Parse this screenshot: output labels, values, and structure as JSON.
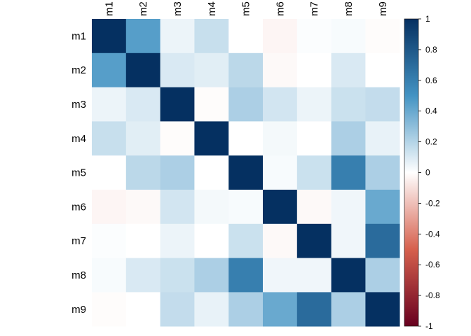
{
  "chart_data": {
    "type": "heatmap",
    "variables": [
      "m1",
      "m2",
      "m3",
      "m4",
      "m5",
      "m6",
      "m7",
      "m8",
      "m9"
    ],
    "matrix": [
      [
        1.0,
        0.45,
        0.05,
        0.15,
        0.0,
        -0.03,
        0.01,
        0.02,
        -0.01
      ],
      [
        0.45,
        1.0,
        0.1,
        0.08,
        0.18,
        -0.02,
        0.0,
        0.1,
        0.0
      ],
      [
        0.05,
        0.1,
        1.0,
        -0.01,
        0.22,
        0.12,
        0.05,
        0.14,
        0.16
      ],
      [
        0.15,
        0.08,
        -0.01,
        1.0,
        0.0,
        0.03,
        0.0,
        0.22,
        0.06
      ],
      [
        0.0,
        0.18,
        0.22,
        0.0,
        1.0,
        0.02,
        0.14,
        0.6,
        0.22
      ],
      [
        -0.03,
        -0.02,
        0.12,
        0.03,
        0.02,
        1.0,
        -0.02,
        0.04,
        0.4
      ],
      [
        0.01,
        0.0,
        0.05,
        0.0,
        0.14,
        -0.02,
        1.0,
        0.04,
        0.7
      ],
      [
        0.02,
        0.1,
        0.14,
        0.22,
        0.6,
        0.04,
        0.04,
        1.0,
        0.22
      ],
      [
        -0.01,
        0.0,
        0.16,
        0.06,
        0.22,
        0.4,
        0.7,
        0.22,
        1.0
      ]
    ],
    "colorbar": {
      "range": [
        -1,
        1
      ],
      "ticks": [
        "1",
        "0.8",
        "0.6",
        "0.4",
        "0.2",
        "0",
        "-0.2",
        "-0.4",
        "-0.6",
        "-0.8",
        "-1"
      ]
    },
    "colors": {
      "neg_full": "#67001F",
      "neg_mid": "#D6604D",
      "zero": "#FFFFFF",
      "pos_mid": "#4393C3",
      "pos_full": "#053061"
    }
  }
}
